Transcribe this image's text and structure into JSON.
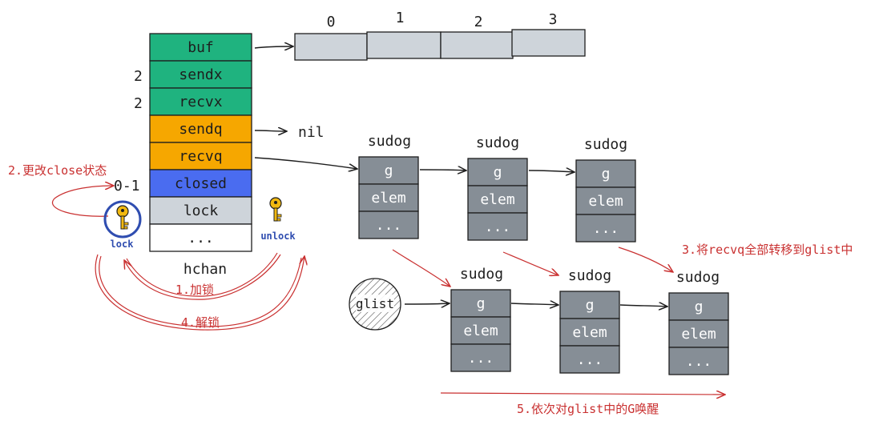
{
  "hchan": {
    "fields": [
      {
        "label": "buf",
        "color": "#1fb37f"
      },
      {
        "label": "sendx",
        "color": "#1fb37f",
        "value": "2"
      },
      {
        "label": "recvx",
        "color": "#1fb37f",
        "value": "2"
      },
      {
        "label": "sendq",
        "color": "#f6a700"
      },
      {
        "label": "recvq",
        "color": "#f6a700"
      },
      {
        "label": "closed",
        "color": "#4a6cf0",
        "value": "0-1"
      },
      {
        "label": "lock",
        "color": "#ced4da"
      },
      {
        "label": "...",
        "color": "#ffffff"
      }
    ],
    "caption": "hchan",
    "sendq_target": "nil"
  },
  "buffer": {
    "indices": [
      "0",
      "1",
      "2",
      "3"
    ],
    "color": "#ced4da"
  },
  "sudog": {
    "title": "sudog",
    "fields": [
      "g",
      "elem",
      "..."
    ],
    "color": "#868e96"
  },
  "glist": {
    "label": "glist"
  },
  "lock_icon": {
    "label": "lock",
    "name": "key-icon-lock",
    "color": "#f2b90f"
  },
  "unlock_icon": {
    "label": "unlock",
    "name": "key-icon-unlock",
    "color": "#f2b90f"
  },
  "notes": {
    "step1": "1.加锁",
    "step2": "2.更改close状态",
    "step3": "3.将recvq全部转移到glist中",
    "step4": "4.解锁",
    "step5": "5.依次对glist中的G唤醒"
  },
  "colors": {
    "stroke": "#1e1e1e",
    "red": "#c93030",
    "blue": "#2f4db0"
  }
}
